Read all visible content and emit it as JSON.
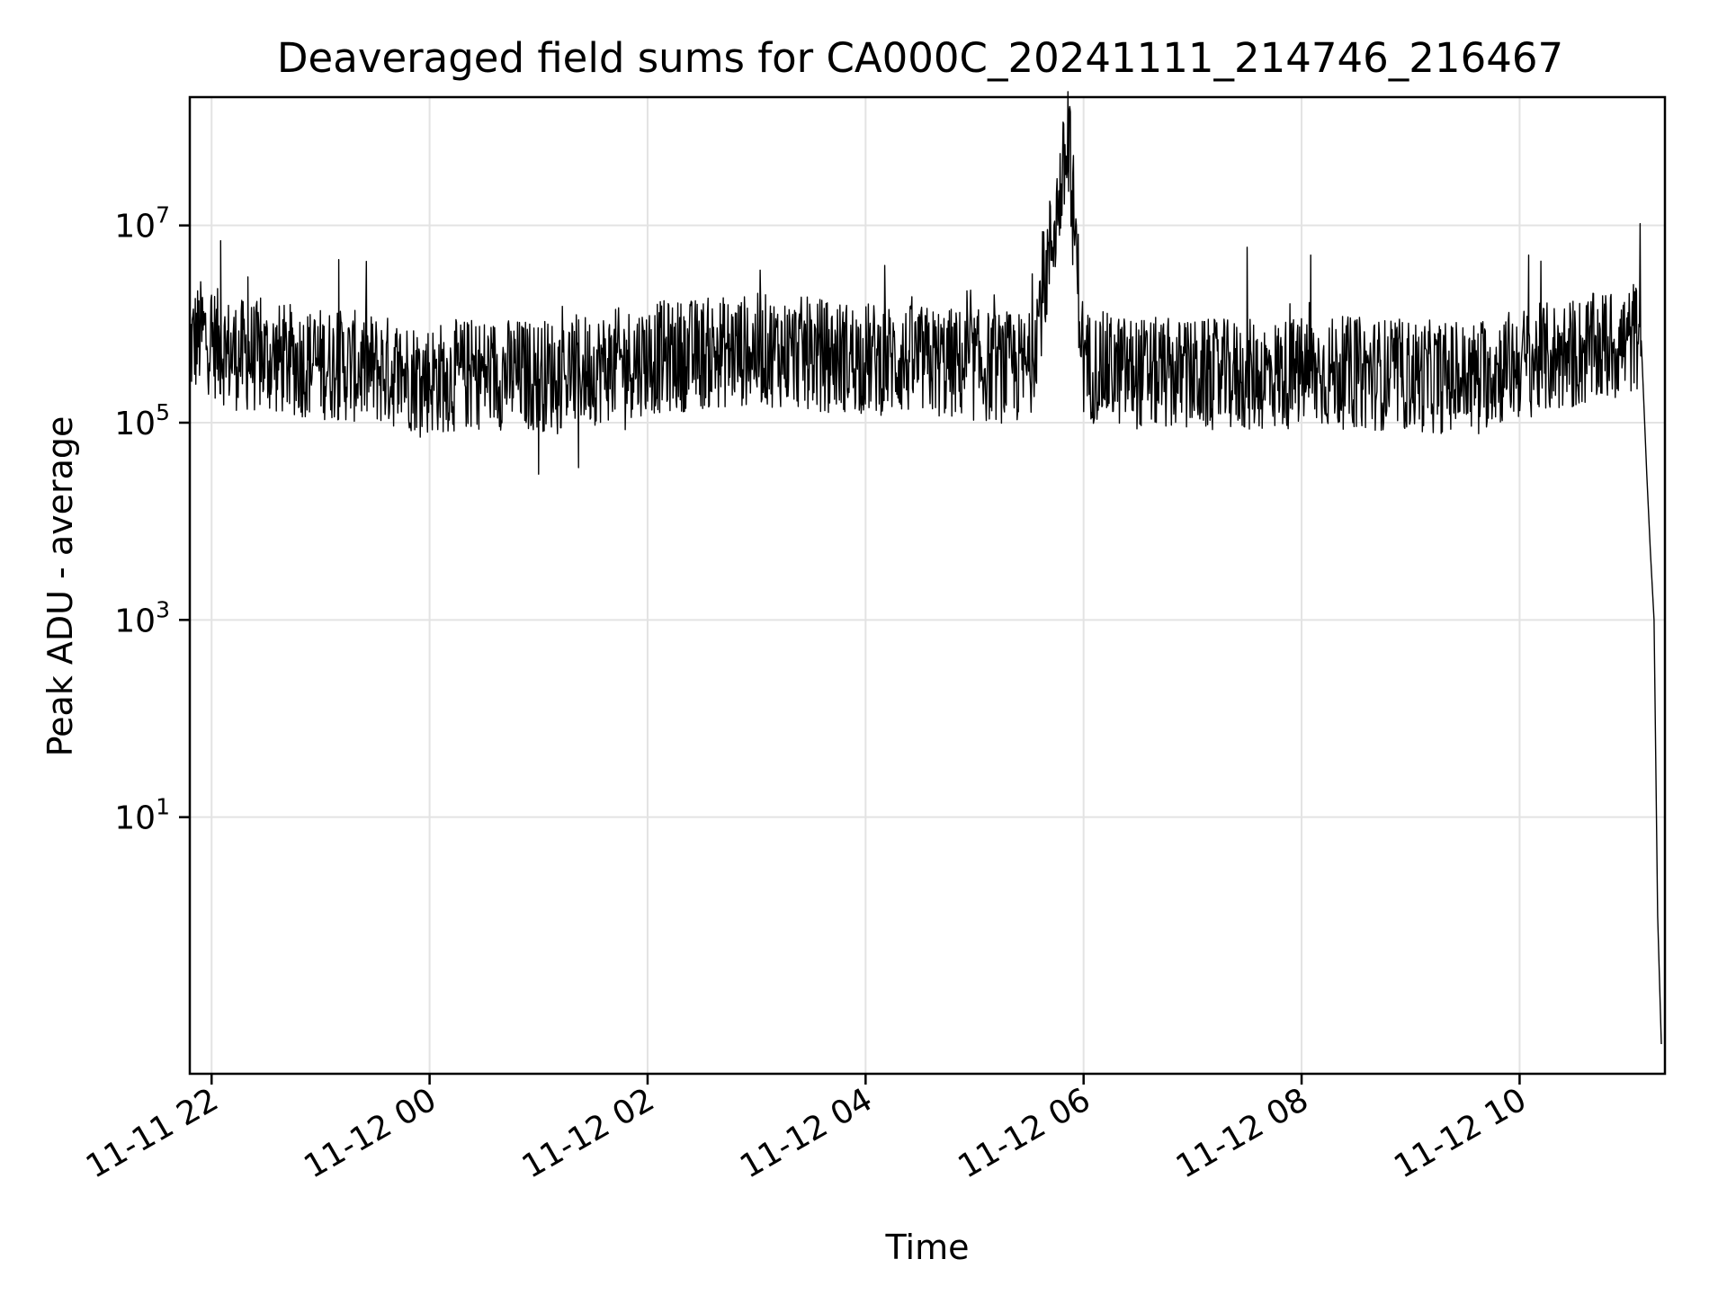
{
  "chart_data": {
    "type": "line",
    "title": "Deaveraged field sums for CA000C_20241111_214746_216467",
    "xlabel": "Time",
    "ylabel": "Peak ADU - average",
    "y_scale": "log",
    "ylim": [
      0.025,
      200000000
    ],
    "xlim": [
      "2024-11-11T21:48:00",
      "2024-11-12T11:20:00"
    ],
    "grid": true,
    "x_ticks": [
      {
        "value": "2024-11-11T22:00:00",
        "label": "11-11 22"
      },
      {
        "value": "2024-11-12T00:00:00",
        "label": "11-12 00"
      },
      {
        "value": "2024-11-12T02:00:00",
        "label": "11-12 02"
      },
      {
        "value": "2024-11-12T04:00:00",
        "label": "11-12 04"
      },
      {
        "value": "2024-11-12T06:00:00",
        "label": "11-12 06"
      },
      {
        "value": "2024-11-12T08:00:00",
        "label": "11-12 08"
      },
      {
        "value": "2024-11-12T10:00:00",
        "label": "11-12 10"
      }
    ],
    "y_ticks": [
      {
        "value": 10,
        "base": "10",
        "exp": "1"
      },
      {
        "value": 1000,
        "base": "10",
        "exp": "3"
      },
      {
        "value": 100000,
        "base": "10",
        "exp": "5"
      },
      {
        "value": 10000000,
        "base": "10",
        "exp": "7"
      }
    ],
    "series": [
      {
        "color": "#000000",
        "x": [
          "2024-11-11T21:48:00",
          "2024-11-11T21:55:00",
          "2024-11-11T22:10:00",
          "2024-11-11T22:30:00",
          "2024-11-11T23:00:00",
          "2024-11-11T23:30:00",
          "2024-11-12T00:00:00",
          "2024-11-12T00:30:00",
          "2024-11-12T01:00:00",
          "2024-11-12T01:30:00",
          "2024-11-12T02:00:00",
          "2024-11-12T02:30:00",
          "2024-11-12T03:00:00",
          "2024-11-12T03:30:00",
          "2024-11-12T04:00:00",
          "2024-11-12T04:30:00",
          "2024-11-12T05:00:00",
          "2024-11-12T05:30:00",
          "2024-11-12T05:52:00",
          "2024-11-12T06:00:00",
          "2024-11-12T06:30:00",
          "2024-11-12T07:00:00",
          "2024-11-12T07:30:00",
          "2024-11-12T08:00:00",
          "2024-11-12T08:30:00",
          "2024-11-12T09:00:00",
          "2024-11-12T09:30:00",
          "2024-11-12T10:00:00",
          "2024-11-12T10:30:00",
          "2024-11-12T11:00:00",
          "2024-11-12T11:07:00",
          "2024-11-12T11:10:00",
          "2024-11-12T11:12:00",
          "2024-11-12T11:14:00",
          "2024-11-12T11:16:00",
          "2024-11-12T11:18:00"
        ],
        "y": [
          600000,
          800000,
          500000,
          450000,
          400000,
          350000,
          280000,
          320000,
          300000,
          350000,
          450000,
          500000,
          550000,
          500000,
          450000,
          420000,
          380000,
          350000,
          70000000,
          380000,
          320000,
          300000,
          300000,
          320000,
          320000,
          300000,
          280000,
          400000,
          500000,
          650000,
          900000,
          30000,
          5000,
          1000,
          1,
          0.05
        ],
        "variation": "noise band spanning roughly 1e5 to 2e6 with spikes near 22:05 (~7e6), 23:10 (~4e6), 01:00 dip (~3e4), 07:30 (~6e6), 08:05 (~5e6), 10:05 (~5e6)"
      }
    ]
  }
}
